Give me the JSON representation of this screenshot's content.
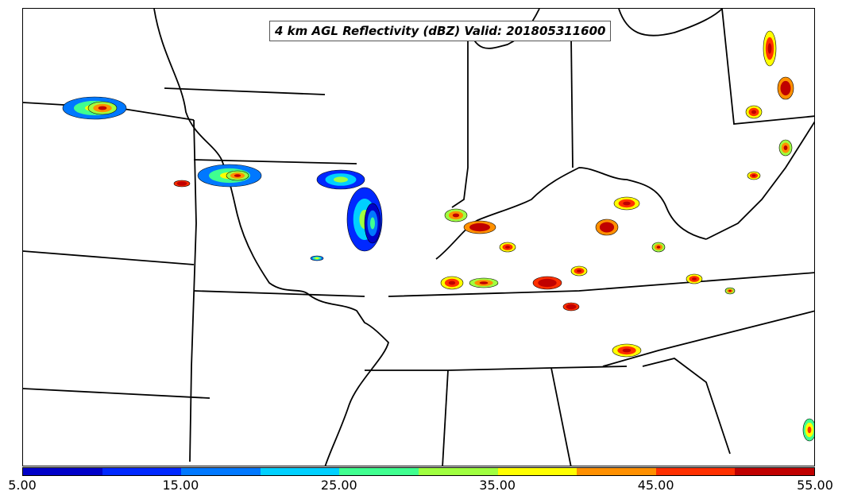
{
  "title": "4 km AGL Reflectivity (dBZ) Valid: 201805311600",
  "colorbar": {
    "colors": [
      "#0000c8",
      "#0028ff",
      "#0078ff",
      "#00d0ff",
      "#40ff90",
      "#a0ff40",
      "#ffff00",
      "#ff9000",
      "#ff3000",
      "#c00000"
    ],
    "ticks": [
      "5.00",
      "15.00",
      "25.00",
      "35.00",
      "45.00",
      "55.00"
    ]
  },
  "map": {
    "variable": "reflectivity",
    "units": "dBZ",
    "projection": "lambert-conformal",
    "basemap": "us-state-borders-and-coastlines",
    "border_color": "#000000"
  }
}
